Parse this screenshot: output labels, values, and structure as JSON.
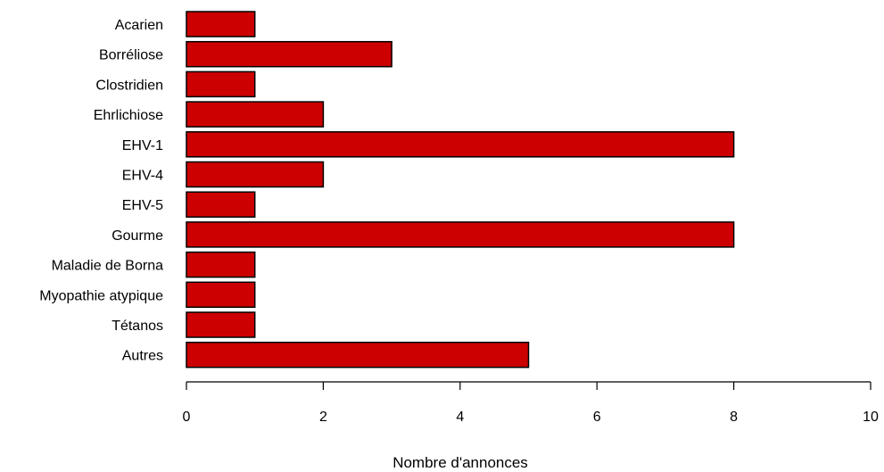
{
  "chart_data": {
    "type": "bar",
    "orientation": "horizontal",
    "categories": [
      "Acarien",
      "Borréliose",
      "Clostridien",
      "Ehrlichiose",
      "EHV-1",
      "EHV-4",
      "EHV-5",
      "Gourme",
      "Maladie de Borna",
      "Myopathie atypique",
      "Tétanos",
      "Autres"
    ],
    "values": [
      1,
      3,
      1,
      2,
      8,
      2,
      1,
      8,
      1,
      1,
      1,
      5
    ],
    "xlabel": "Nombre d'annonces",
    "ylabel": "",
    "title": "",
    "xlim": [
      0,
      10
    ],
    "xticks": [
      0,
      2,
      4,
      6,
      8,
      10
    ],
    "bar_color": "#cc0000",
    "bar_edge_color": "#000000",
    "grid": false
  }
}
